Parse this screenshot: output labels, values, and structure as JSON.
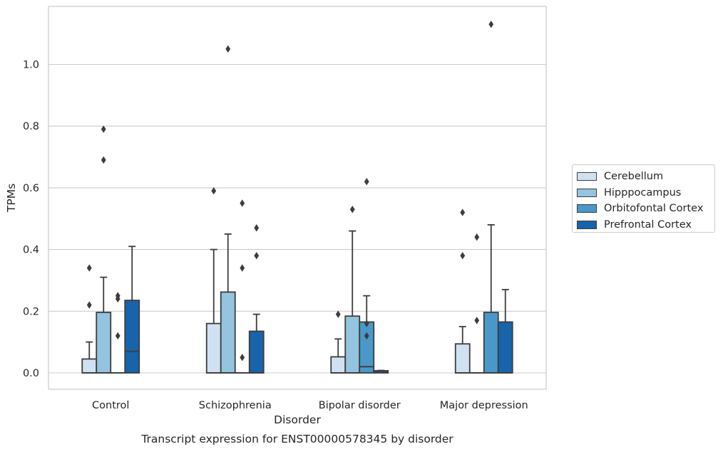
{
  "chart_data": {
    "type": "box",
    "caption": "Transcript expression for ENST00000578345 by disorder",
    "xlabel": "Disorder",
    "ylabel": "TPMs",
    "ylim": [
      -0.055,
      1.19
    ],
    "yticks": [
      "0.0",
      "0.2",
      "0.4",
      "0.6",
      "0.8",
      "1.0"
    ],
    "grid": "horizontal",
    "legend_placement": "right",
    "categories": [
      "Control",
      "Schizophrenia",
      "Bipolar disorder",
      "Major depression"
    ],
    "series": [
      {
        "name": "Cerebellum",
        "color": "#d0e1f2",
        "boxes": [
          {
            "q1": 0,
            "median": 0,
            "q3": 0.045,
            "whislo": 0,
            "whishi": 0.1,
            "fliers": [
              0.22,
              0.34
            ]
          },
          {
            "q1": 0,
            "median": 0,
            "q3": 0.16,
            "whislo": 0,
            "whishi": 0.4,
            "fliers": [
              0.59
            ]
          },
          {
            "q1": 0,
            "median": 0,
            "q3": 0.052,
            "whislo": 0,
            "whishi": 0.11,
            "fliers": [
              0.19
            ]
          },
          {
            "q1": 0,
            "median": 0,
            "q3": 0.094,
            "whislo": 0,
            "whishi": 0.15,
            "fliers": [
              0.38,
              0.52
            ]
          }
        ]
      },
      {
        "name": "Hipppocampus",
        "color": "#94c4df",
        "boxes": [
          {
            "q1": 0,
            "median": 0,
            "q3": 0.196,
            "whislo": 0,
            "whishi": 0.31,
            "fliers": [
              0.69,
              0.79
            ]
          },
          {
            "q1": 0,
            "median": 0,
            "q3": 0.262,
            "whislo": 0,
            "whishi": 0.45,
            "fliers": [
              1.05
            ]
          },
          {
            "q1": 0,
            "median": 0,
            "q3": 0.184,
            "whislo": 0,
            "whishi": 0.46,
            "fliers": [
              0.53
            ]
          },
          {
            "q1": 0,
            "median": 0,
            "q3": 0,
            "whislo": 0,
            "whishi": 0,
            "fliers": [
              0.17,
              0.44
            ]
          }
        ]
      },
      {
        "name": "Orbitofontal Cortex",
        "color": "#4a98c9",
        "boxes": [
          {
            "q1": 0,
            "median": 0,
            "q3": 0,
            "whislo": 0,
            "whishi": 0,
            "fliers": [
              0.12,
              0.24,
              0.25
            ]
          },
          {
            "q1": 0,
            "median": 0,
            "q3": 0,
            "whislo": 0,
            "whishi": 0,
            "fliers": [
              0.05,
              0.34,
              0.55
            ]
          },
          {
            "q1": 0,
            "median": 0.02,
            "q3": 0.165,
            "whislo": 0,
            "whishi": 0.25,
            "fliers": [
              0.12,
              0.16,
              0.62
            ]
          },
          {
            "q1": 0,
            "median": 0,
            "q3": 0.196,
            "whislo": 0,
            "whishi": 0.48,
            "fliers": [
              1.13
            ]
          }
        ]
      },
      {
        "name": "Prefrontal Cortex",
        "color": "#1764ab",
        "boxes": [
          {
            "q1": 0,
            "median": 0.07,
            "q3": 0.235,
            "whislo": 0,
            "whishi": 0.41,
            "fliers": []
          },
          {
            "q1": 0,
            "median": 0,
            "q3": 0.135,
            "whislo": 0,
            "whishi": 0.19,
            "fliers": [
              0.38,
              0.47
            ]
          },
          {
            "q1": 0,
            "median": 0.002,
            "q3": 0.007,
            "whislo": 0,
            "whishi": 0.008,
            "fliers": []
          },
          {
            "q1": 0,
            "median": 0,
            "q3": 0.165,
            "whislo": 0,
            "whishi": 0.27,
            "fliers": []
          }
        ]
      }
    ]
  }
}
